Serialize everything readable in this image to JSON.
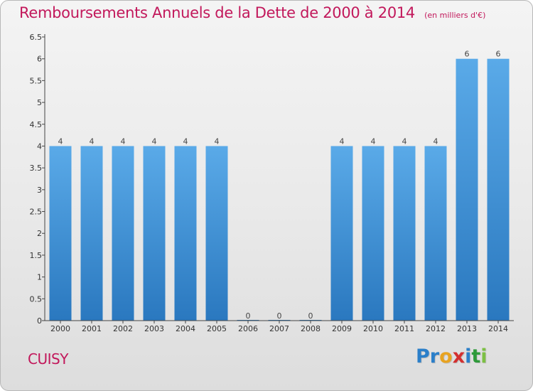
{
  "chart_data": {
    "type": "bar",
    "title": "Remboursements Annuels de la Dette de 2000 à 2014",
    "unit": "(en milliers d'€)",
    "categories": [
      "2000",
      "2001",
      "2002",
      "2003",
      "2004",
      "2005",
      "2006",
      "2007",
      "2008",
      "2009",
      "2010",
      "2011",
      "2012",
      "2013",
      "2014"
    ],
    "values": [
      4,
      4,
      4,
      4,
      4,
      4,
      0,
      0,
      0,
      4,
      4,
      4,
      4,
      6,
      6
    ],
    "value_labels": [
      "4",
      "4",
      "4",
      "4",
      "4",
      "4",
      "0",
      "0",
      "0",
      "4",
      "4",
      "4",
      "4",
      "6",
      "6"
    ],
    "ylim": [
      0,
      6.5
    ],
    "yticks": [
      "0",
      "0.5",
      "1",
      "1.5",
      "2",
      "2.5",
      "3",
      "3.5",
      "4",
      "4.5",
      "5",
      "5.5",
      "6",
      "6.5"
    ],
    "xlabel": "",
    "ylabel": "",
    "grid": false,
    "bar_color": "#3a8fd6"
  },
  "footer": {
    "commune": "CUISY",
    "logo_letters": [
      {
        "ch": "P",
        "color": "#2b7fc9"
      },
      {
        "ch": "r",
        "color": "#2b7fc9"
      },
      {
        "ch": "o",
        "color": "#e8a321"
      },
      {
        "ch": "x",
        "color": "#d32f2f"
      },
      {
        "ch": "i",
        "color": "#2b7fc9"
      },
      {
        "ch": "t",
        "color": "#2e9a3a"
      },
      {
        "ch": "i",
        "color": "#7cc043"
      }
    ]
  }
}
